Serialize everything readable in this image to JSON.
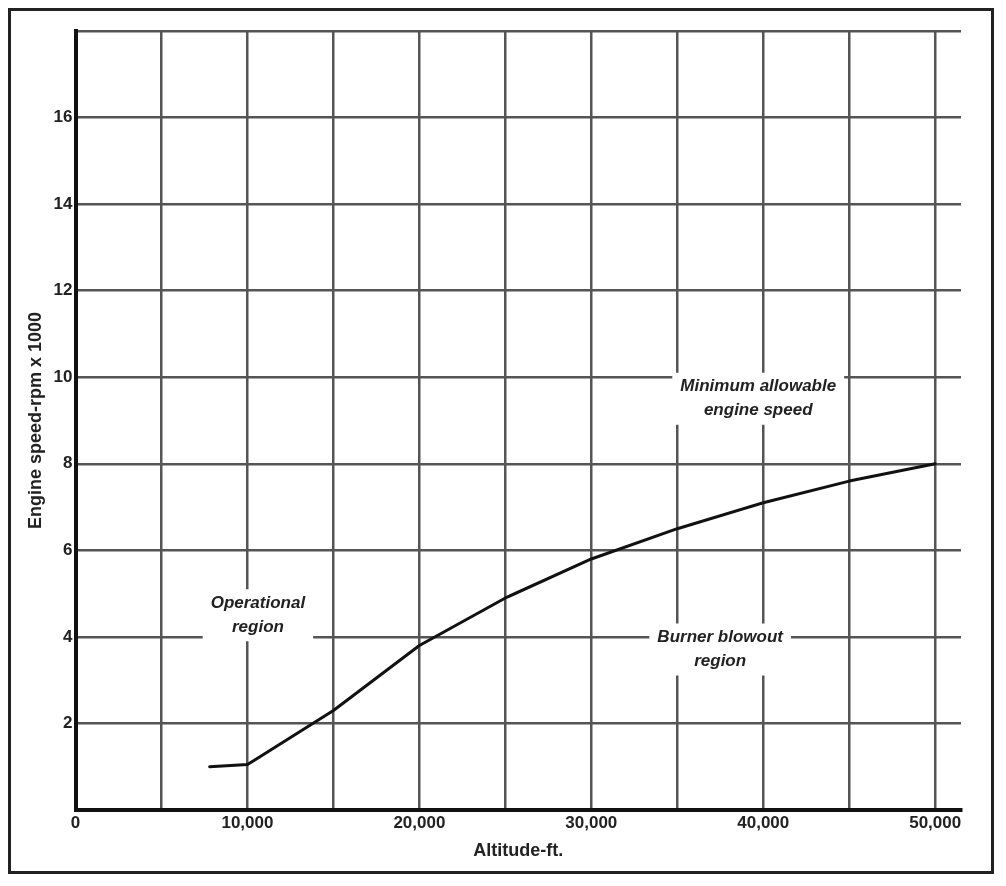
{
  "chart_data": {
    "type": "line",
    "xlabel": "Altitude-ft.",
    "ylabel": "Engine speed-rpm x 1000",
    "x": [
      7800,
      10000,
      15000,
      20000,
      25000,
      30000,
      35000,
      40000,
      45000,
      50000
    ],
    "series": [
      {
        "color": "#111111",
        "values": [
          1.0,
          1.05,
          2.3,
          3.8,
          4.9,
          5.8,
          6.5,
          7.1,
          7.6,
          8.0
        ]
      }
    ],
    "xlim": [
      0,
      51500
    ],
    "xticks": [
      0,
      {
        "value": 5000,
        "label": null
      },
      {
        "value": 10000,
        "label": "10,000"
      },
      {
        "value": 15000,
        "label": null
      },
      {
        "value": 20000,
        "label": "20,000"
      },
      {
        "value": 25000,
        "label": null
      },
      {
        "value": 30000,
        "label": "30,000"
      },
      {
        "value": 35000,
        "label": null
      },
      {
        "value": 40000,
        "label": "40,000"
      },
      {
        "value": 45000,
        "label": null
      },
      {
        "value": 50000,
        "label": "50,000"
      }
    ],
    "ylim": [
      0,
      18
    ],
    "yticks": [
      {
        "value": 0,
        "label": null
      },
      2,
      4,
      6,
      8,
      10,
      12,
      14,
      16,
      {
        "value": 18,
        "label": null
      }
    ],
    "grid": true,
    "legend": false,
    "marker": "none",
    "line_style": "solid",
    "annotations": [
      "Operational\nregion",
      "Burner blowout\nregion",
      "Minimum allowable\nengine speed"
    ]
  }
}
